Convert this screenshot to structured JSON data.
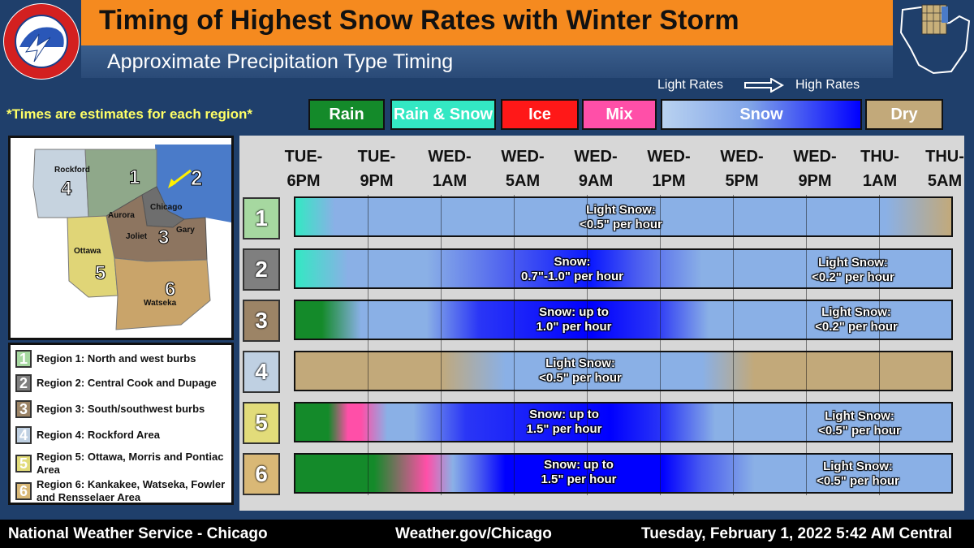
{
  "header": {
    "title": "Timing of Highest Snow Rates with Winter Storm",
    "subtitle": "Approximate Precipitation Type Timing",
    "logo_text": "NATIONAL WEATHER SERVICE"
  },
  "legend": {
    "light_rates": "Light Rates",
    "high_rates": "High Rates",
    "note": "*Times are estimates for each region*",
    "items": [
      {
        "label": "Rain",
        "color": "#148a2a"
      },
      {
        "label": "Rain & Snow",
        "color": "#33e8c3"
      },
      {
        "label": "Ice",
        "color": "#ff1818"
      },
      {
        "label": "Mix",
        "color": "#ff4fa8"
      },
      {
        "label": "Snow",
        "color": "#0000ff"
      },
      {
        "label": "Dry",
        "color": "#c2a97a"
      }
    ]
  },
  "map": {
    "cities": [
      "Rockford",
      "Aurora",
      "Chicago",
      "Joliet",
      "Gary",
      "Ottawa",
      "Watseka"
    ],
    "region_numbers": [
      "1",
      "2",
      "3",
      "4",
      "5",
      "6"
    ]
  },
  "key": [
    {
      "num": "1",
      "text": "Region 1: North and west burbs",
      "color": "#a6d8a0"
    },
    {
      "num": "2",
      "text": "Region 2: Central Cook and Dupage",
      "color": "#7f7f7f"
    },
    {
      "num": "3",
      "text": "Region 3: South/southwest burbs",
      "color": "#9c8466"
    },
    {
      "num": "4",
      "text": "Region 4: Rockford Area",
      "color": "#bfd0e2"
    },
    {
      "num": "5",
      "text": "Region 5: Ottawa, Morris and Pontiac Area",
      "color": "#e2dc7a"
    },
    {
      "num": "6",
      "text": "Region 6: Kankakee, Watseka, Fowler and Rensselaer Area",
      "color": "#d9b876"
    }
  ],
  "timeline": {
    "times": [
      {
        "day": "TUE-",
        "hour": "6PM"
      },
      {
        "day": "TUE-",
        "hour": "9PM"
      },
      {
        "day": "WED-",
        "hour": "1AM"
      },
      {
        "day": "WED-",
        "hour": "5AM"
      },
      {
        "day": "WED-",
        "hour": "9AM"
      },
      {
        "day": "WED-",
        "hour": "1PM"
      },
      {
        "day": "WED-",
        "hour": "5PM"
      },
      {
        "day": "WED-",
        "hour": "9PM"
      },
      {
        "day": "THU-",
        "hour": "1AM"
      },
      {
        "day": "THU-",
        "hour": "5AM"
      }
    ],
    "rows": [
      {
        "region": "1",
        "label_color": "#a6d8a0",
        "notes": [
          {
            "line1": "Light Snow:",
            "line2": "<0.5\" per hour"
          }
        ]
      },
      {
        "region": "2",
        "label_color": "#7f7f7f",
        "notes": [
          {
            "line1": "Snow:",
            "line2": "0.7\"-1.0\" per hour"
          },
          {
            "line1": "Light Snow:",
            "line2": "<0.2\" per hour"
          }
        ]
      },
      {
        "region": "3",
        "label_color": "#9c8466",
        "notes": [
          {
            "line1": "Snow: up to",
            "line2": "1.0\" per hour"
          },
          {
            "line1": "Light Snow:",
            "line2": "<0.2\" per hour"
          }
        ]
      },
      {
        "region": "4",
        "label_color": "#bfd0e2",
        "notes": [
          {
            "line1": "Light Snow:",
            "line2": "<0.5\" per hour"
          }
        ]
      },
      {
        "region": "5",
        "label_color": "#e2dc7a",
        "notes": [
          {
            "line1": "Snow: up to",
            "line2": "1.5\" per hour"
          },
          {
            "line1": "Light Snow:",
            "line2": "<0.5\" per hour"
          }
        ]
      },
      {
        "region": "6",
        "label_color": "#d9b876",
        "notes": [
          {
            "line1": "Snow: up to",
            "line2": "1.5\" per hour"
          },
          {
            "line1": "Light Snow:",
            "line2": "<0.5\" per hour"
          }
        ]
      }
    ]
  },
  "footer": {
    "left": "National Weather Service - Chicago",
    "middle": "Weather.gov/Chicago",
    "right": "Tuesday, February 1, 2022 5:42 AM Central"
  }
}
